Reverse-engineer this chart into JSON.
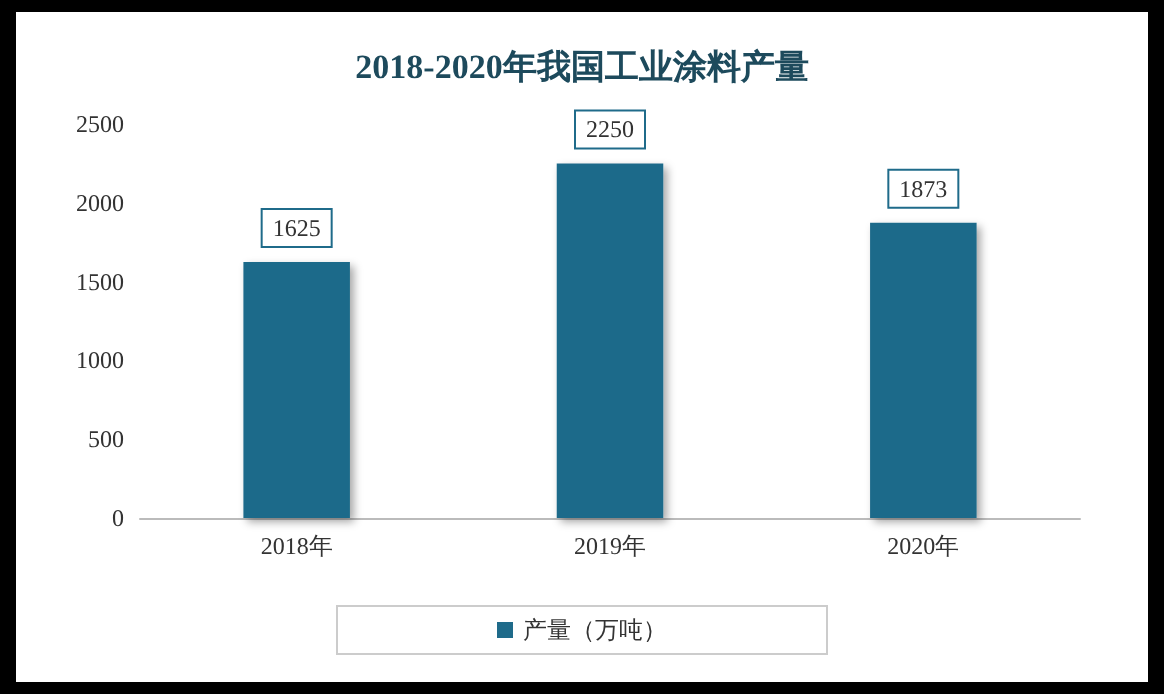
{
  "chart_data": {
    "type": "bar",
    "title": "2018-2020年我国工业涂料产量",
    "categories": [
      "2018年",
      "2019年",
      "2020年"
    ],
    "series": [
      {
        "name": "产量（万吨）",
        "color": "#1f6b8a",
        "values": [
          1625,
          2250,
          1873
        ]
      }
    ],
    "ylim": [
      0,
      2500
    ],
    "yticks": [
      0,
      500,
      1000,
      1500,
      2000,
      2500
    ],
    "grid": false,
    "legend": "bottom",
    "data_labels": true
  }
}
